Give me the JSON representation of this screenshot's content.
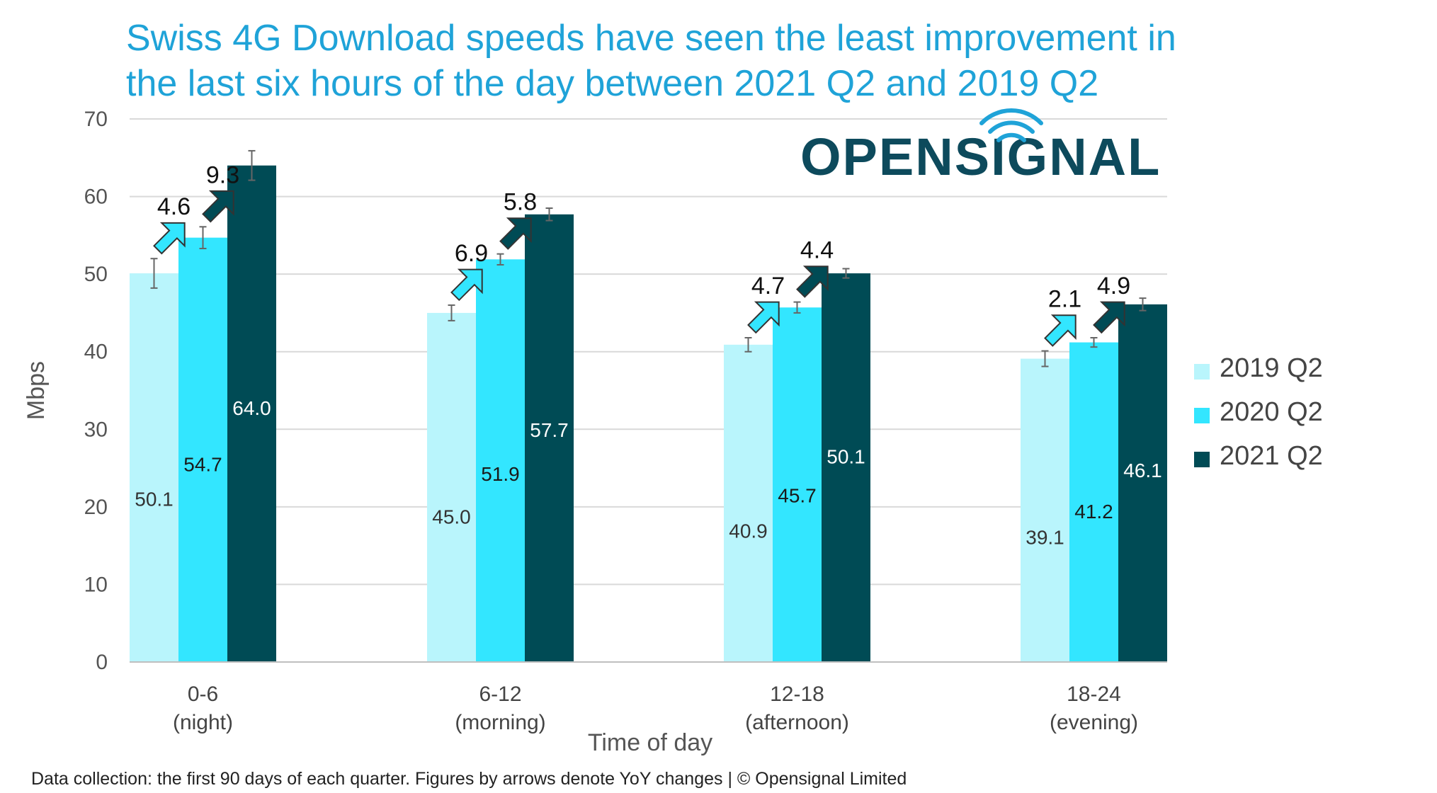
{
  "title_line1": "Swiss 4G Download speeds have seen the least improvement in",
  "title_line2": "the last six hours of the day between 2021 Q2 and 2019 Q2",
  "footnote": "Data collection: the first 90 days of each quarter. Figures by arrows denote YoY changes | © Opensignal Limited",
  "logo_text": "OPENSIGNAL",
  "colors": {
    "title": "#1fa3d8",
    "s2019": "#b9f5fc",
    "s2020": "#33e6ff",
    "s2021": "#004b55",
    "logo": "#0d4a5c",
    "grid": "#d9d9d9"
  },
  "chart_data": {
    "type": "bar",
    "ylabel": "Mbps",
    "xlabel": "Time of day",
    "ylim": [
      0,
      70
    ],
    "yticks": [
      0,
      10,
      20,
      30,
      40,
      50,
      60,
      70
    ],
    "grid": true,
    "legend_position": "right",
    "categories": [
      [
        "0-6",
        "(night)"
      ],
      [
        "6-12",
        "(morning)"
      ],
      [
        "12-18",
        "(afternoon)"
      ],
      [
        "18-24",
        "(evening)"
      ]
    ],
    "series": [
      {
        "name": "2019 Q2",
        "values": [
          50.1,
          45.0,
          40.9,
          39.1
        ],
        "labels": [
          "50.1",
          "45.0",
          "40.9",
          "39.1"
        ],
        "err": [
          1.9,
          1.0,
          0.9,
          1.0
        ]
      },
      {
        "name": "2020 Q2",
        "values": [
          54.7,
          51.9,
          45.7,
          41.2
        ],
        "labels": [
          "54.7",
          "51.9",
          "45.7",
          "41.2"
        ],
        "err": [
          1.4,
          0.7,
          0.7,
          0.6
        ]
      },
      {
        "name": "2021 Q2",
        "values": [
          64.0,
          57.7,
          50.1,
          46.1
        ],
        "labels": [
          "64.0",
          "57.7",
          "50.1",
          "46.1"
        ],
        "err": [
          1.9,
          0.8,
          0.6,
          0.8
        ]
      }
    ],
    "yoy_changes": [
      {
        "from_2019_to_2020": "4.6",
        "from_2020_to_2021": "9.3"
      },
      {
        "from_2019_to_2020": "6.9",
        "from_2020_to_2021": "5.8"
      },
      {
        "from_2019_to_2020": "4.7",
        "from_2020_to_2021": "4.4"
      },
      {
        "from_2019_to_2020": "2.1",
        "from_2020_to_2021": "4.9"
      }
    ]
  }
}
